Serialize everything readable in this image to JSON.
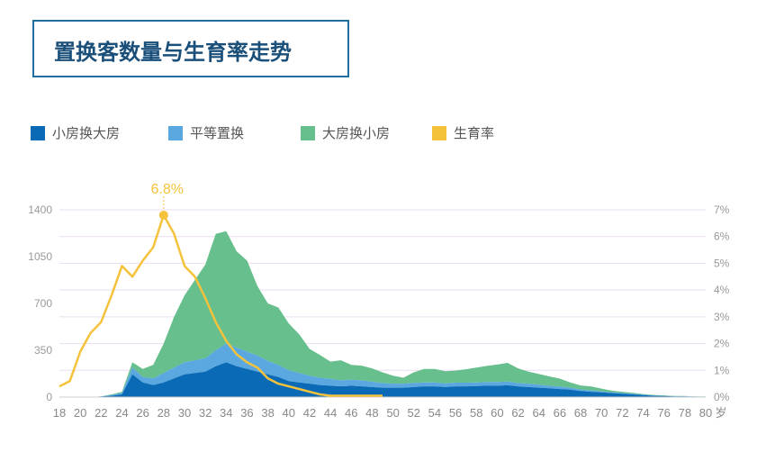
{
  "title": "置换客数量与生育率走势",
  "colors": {
    "small_to_big": "#0a6ab5",
    "equal": "#5aa8df",
    "big_to_small": "#66bf8c",
    "fertility": "#f5c23c",
    "title_border": "#1f6e9e",
    "title_text": "#1a4f7a"
  },
  "legend": [
    {
      "label": "小房换大房",
      "color": "#0a6ab5"
    },
    {
      "label": "平等置换",
      "color": "#5aa8df"
    },
    {
      "label": "大房换小房",
      "color": "#66bf8c"
    },
    {
      "label": "生育率",
      "color": "#f5c23c"
    }
  ],
  "chart_data": {
    "type": "area",
    "x_unit": "岁",
    "x": [
      18,
      19,
      20,
      21,
      22,
      23,
      24,
      25,
      26,
      27,
      28,
      29,
      30,
      31,
      32,
      33,
      34,
      35,
      36,
      37,
      38,
      39,
      40,
      41,
      42,
      43,
      44,
      45,
      46,
      47,
      48,
      49,
      50,
      51,
      52,
      53,
      54,
      55,
      56,
      57,
      58,
      59,
      60,
      61,
      62,
      63,
      64,
      65,
      66,
      67,
      68,
      69,
      70,
      71,
      72,
      73,
      74,
      75,
      76,
      77,
      78,
      79,
      80
    ],
    "x_tick_labels": [
      "18",
      "20",
      "22",
      "24",
      "26",
      "28",
      "30",
      "32",
      "34",
      "36",
      "38",
      "40",
      "42",
      "44",
      "46",
      "48",
      "50",
      "52",
      "54",
      "56",
      "58",
      "60",
      "62",
      "64",
      "66",
      "68",
      "70",
      "72",
      "74",
      "76",
      "78",
      "80"
    ],
    "y_left": {
      "ticks": [
        0,
        350,
        700,
        1050,
        1400
      ],
      "ylim": [
        0,
        1400
      ]
    },
    "y_right": {
      "ticks": [
        "0%",
        "1%",
        "2%",
        "3%",
        "4%",
        "5%",
        "6%",
        "7%"
      ],
      "ylim": [
        0,
        7
      ]
    },
    "series": [
      {
        "name": "小房换大房",
        "axis": "left",
        "stacked": true,
        "values": [
          0,
          0,
          0,
          0,
          5,
          10,
          20,
          170,
          110,
          90,
          110,
          140,
          170,
          180,
          190,
          230,
          260,
          230,
          210,
          190,
          170,
          150,
          120,
          110,
          100,
          90,
          85,
          80,
          85,
          80,
          75,
          70,
          70,
          70,
          75,
          80,
          80,
          75,
          80,
          80,
          82,
          85,
          85,
          88,
          80,
          75,
          70,
          65,
          60,
          55,
          45,
          40,
          35,
          30,
          25,
          20,
          15,
          10,
          8,
          5,
          5,
          3,
          3
        ]
      },
      {
        "name": "平等置换",
        "axis": "left",
        "stacked": true,
        "values": [
          0,
          0,
          0,
          0,
          0,
          5,
          10,
          50,
          40,
          50,
          70,
          80,
          90,
          95,
          100,
          120,
          140,
          140,
          130,
          120,
          100,
          90,
          80,
          70,
          60,
          55,
          50,
          45,
          45,
          45,
          40,
          35,
          30,
          30,
          30,
          30,
          30,
          28,
          28,
          28,
          28,
          28,
          28,
          28,
          25,
          25,
          22,
          20,
          18,
          15,
          12,
          10,
          8,
          6,
          5,
          4,
          3,
          2,
          2,
          1,
          1,
          1,
          0
        ]
      },
      {
        "name": "大房换小房",
        "axis": "left",
        "stacked": true,
        "values": [
          0,
          0,
          0,
          0,
          0,
          5,
          10,
          40,
          60,
          100,
          220,
          380,
          500,
          600,
          700,
          870,
          840,
          720,
          680,
          520,
          430,
          430,
          350,
          290,
          200,
          170,
          130,
          150,
          110,
          110,
          100,
          80,
          60,
          45,
          80,
          100,
          100,
          90,
          90,
          100,
          110,
          120,
          130,
          140,
          110,
          90,
          80,
          70,
          60,
          40,
          30,
          30,
          20,
          12,
          10,
          8,
          5,
          4,
          3,
          2,
          2,
          1,
          1
        ]
      },
      {
        "name": "生育率",
        "axis": "right",
        "type": "line",
        "unit": "%",
        "x": [
          18,
          19,
          20,
          21,
          22,
          23,
          24,
          25,
          26,
          27,
          28,
          29,
          30,
          31,
          32,
          33,
          34,
          35,
          36,
          37,
          38,
          39,
          40,
          41,
          42,
          43,
          44,
          45,
          46,
          47,
          48,
          49
        ],
        "values": [
          0.4,
          0.6,
          1.7,
          2.4,
          2.8,
          3.8,
          4.9,
          4.5,
          5.1,
          5.6,
          6.8,
          6.1,
          4.9,
          4.5,
          3.7,
          2.8,
          2.1,
          1.6,
          1.3,
          1.1,
          0.7,
          0.5,
          0.4,
          0.3,
          0.2,
          0.1,
          0.05,
          0.05,
          0.05,
          0.05,
          0.05,
          0.05
        ]
      }
    ],
    "annotations": [
      {
        "label": "6.8%",
        "x": 28,
        "y": 6.8,
        "axis": "right"
      }
    ],
    "grid": true
  }
}
